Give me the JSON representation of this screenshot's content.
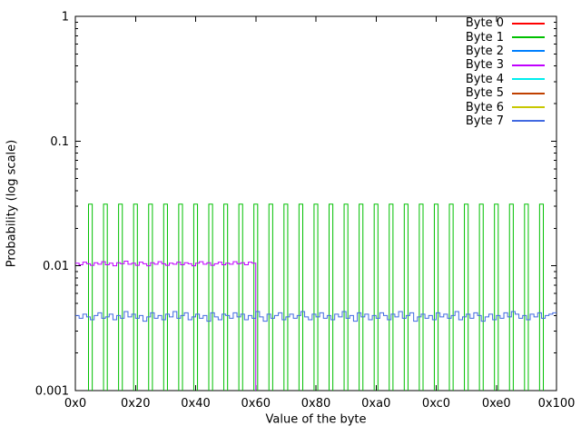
{
  "legend": {
    "entries": [
      {
        "label": "Byte 0",
        "color": "#ff0000"
      },
      {
        "label": "Byte 1",
        "color": "#00c000"
      },
      {
        "label": "Byte 2",
        "color": "#0080ff"
      },
      {
        "label": "Byte 3",
        "color": "#c000ff"
      },
      {
        "label": "Byte 4",
        "color": "#00eeee"
      },
      {
        "label": "Byte 5",
        "color": "#c04000"
      },
      {
        "label": "Byte 6",
        "color": "#c8c800"
      },
      {
        "label": "Byte 7",
        "color": "#4169e1"
      }
    ]
  },
  "chart_data": {
    "type": "line",
    "title": "",
    "x_axis": {
      "label": "Value of the byte",
      "min": 0,
      "max": 256,
      "tick_labels": [
        "0x0",
        "0x20",
        "0x40",
        "0x60",
        "0x80",
        "0xa0",
        "0xc0",
        "0xe0",
        "0x100"
      ],
      "tick_values": [
        0,
        32,
        64,
        96,
        128,
        160,
        192,
        224,
        256
      ],
      "grid": false
    },
    "y_axis": {
      "label": "Probability (log scale)",
      "scale": "log",
      "min": 0.001,
      "max": 1,
      "tick_labels": [
        "1",
        "0.1",
        "0.01",
        "0.001"
      ],
      "tick_values": [
        1,
        0.1,
        0.01,
        0.001
      ],
      "minor_ticks": [
        2,
        3,
        4,
        5,
        6,
        7,
        8,
        9
      ],
      "grid": false
    },
    "legend_position": "top-right-inside",
    "axis_color": "#000000",
    "series": [
      {
        "name": "Byte 1",
        "color": "#00c000",
        "style": "impulse-bins",
        "bin_half_width": 1,
        "peak_value": 0.03125,
        "peak_positions": [
          8,
          16,
          24,
          32,
          40,
          48,
          56,
          64,
          72,
          80,
          88,
          96,
          104,
          112,
          120,
          128,
          136,
          144,
          152,
          160,
          168,
          176,
          184,
          192,
          200,
          208,
          216,
          224,
          232,
          240,
          248
        ]
      },
      {
        "name": "Byte 3",
        "color": "#c000ff",
        "style": "steps",
        "x_start": 0,
        "step_width": 2,
        "drop_to_baseline_at": 96,
        "values": [
          0.0105,
          0.0102,
          0.0107,
          0.0104,
          0.0101,
          0.0106,
          0.0103,
          0.0108,
          0.0102,
          0.0105,
          0.01,
          0.0106,
          0.0104,
          0.0109,
          0.0103,
          0.0105,
          0.0101,
          0.0107,
          0.0104,
          0.01,
          0.0106,
          0.0103,
          0.0108,
          0.0104,
          0.0101,
          0.0105,
          0.0103,
          0.0107,
          0.0102,
          0.0106,
          0.0104,
          0.01,
          0.0105,
          0.0108,
          0.0103,
          0.0106,
          0.0101,
          0.0104,
          0.0107,
          0.0102,
          0.0105,
          0.0103,
          0.0108,
          0.0104,
          0.0106,
          0.0102,
          0.0107,
          0.0105
        ]
      },
      {
        "name": "Byte 7",
        "color": "#4169e1",
        "style": "steps",
        "x_start": 0,
        "step_width": 2,
        "values": [
          0.004,
          0.0038,
          0.0041,
          0.0039,
          0.0037,
          0.004,
          0.0042,
          0.0038,
          0.0039,
          0.0041,
          0.0037,
          0.004,
          0.0038,
          0.0043,
          0.0039,
          0.0041,
          0.0038,
          0.004,
          0.0036,
          0.0039,
          0.0042,
          0.0038,
          0.004,
          0.0037,
          0.0041,
          0.0039,
          0.0043,
          0.0038,
          0.004,
          0.0042,
          0.0037,
          0.0039,
          0.0041,
          0.0038,
          0.004,
          0.0036,
          0.0042,
          0.0039,
          0.0037,
          0.0041,
          0.004,
          0.0038,
          0.0042,
          0.0039,
          0.0041,
          0.0037,
          0.004,
          0.0038,
          0.0043,
          0.0039,
          0.0036,
          0.0041,
          0.0038,
          0.004,
          0.0042,
          0.0037,
          0.0039,
          0.0041,
          0.0038,
          0.004,
          0.0043,
          0.0039,
          0.0037,
          0.0041,
          0.0039,
          0.0042,
          0.0038,
          0.004,
          0.0037,
          0.0041,
          0.0039,
          0.0043,
          0.0038,
          0.004,
          0.0036,
          0.0042,
          0.0039,
          0.0041,
          0.0037,
          0.004,
          0.0038,
          0.0042,
          0.004,
          0.0037,
          0.0041,
          0.0039,
          0.0043,
          0.0038,
          0.004,
          0.0042,
          0.0036,
          0.0039,
          0.0041,
          0.0038,
          0.004,
          0.0037,
          0.0042,
          0.0039,
          0.0041,
          0.0038,
          0.004,
          0.0043,
          0.0037,
          0.0039,
          0.0041,
          0.0038,
          0.0042,
          0.004,
          0.0036,
          0.0039,
          0.0041,
          0.0037,
          0.004,
          0.0038,
          0.0042,
          0.0039,
          0.0043,
          0.0041,
          0.0038,
          0.004,
          0.0037,
          0.0041,
          0.0039,
          0.0042,
          0.0038,
          0.004,
          0.0041,
          0.0042
        ]
      }
    ]
  }
}
